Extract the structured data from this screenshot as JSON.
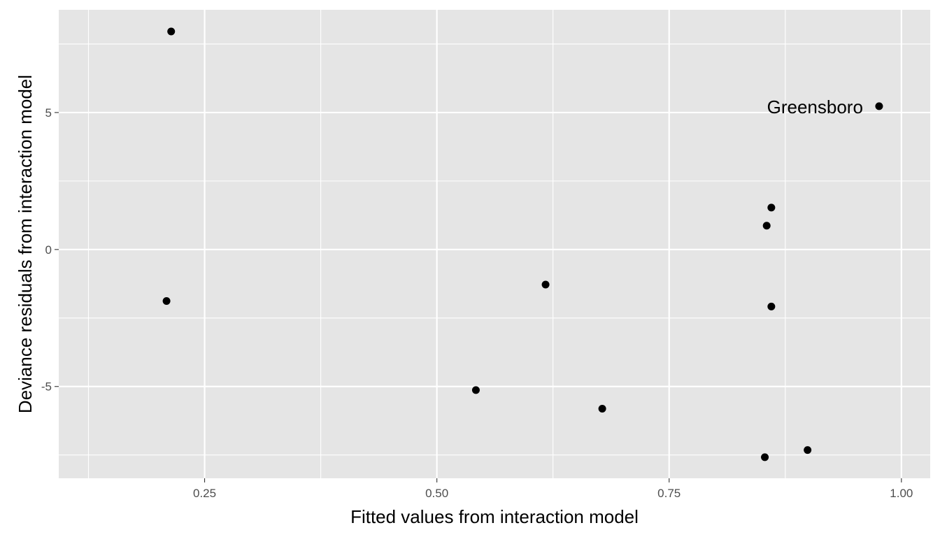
{
  "chart_data": {
    "type": "scatter",
    "title": "",
    "xlabel": "Fitted values from interaction model",
    "ylabel": "Deviance residuals from interaction model",
    "xlim": [
      0.093,
      1.031
    ],
    "ylim": [
      -8.35,
      8.75
    ],
    "x_ticks": [
      0.25,
      0.5,
      0.75,
      1.0
    ],
    "x_tick_labels": [
      "0.25",
      "0.50",
      "0.75",
      "1.00"
    ],
    "y_ticks": [
      -5,
      0,
      5
    ],
    "y_tick_labels": [
      "-5",
      "0",
      "5"
    ],
    "grid": true,
    "background": "#e5e5e5",
    "grid_color": "#ffffff",
    "point_color": "#000000",
    "points": [
      {
        "x": 0.214,
        "y": 7.96
      },
      {
        "x": 0.976,
        "y": 5.23
      },
      {
        "x": 0.86,
        "y": 1.53
      },
      {
        "x": 0.855,
        "y": 0.87
      },
      {
        "x": 0.209,
        "y": -1.88
      },
      {
        "x": 0.617,
        "y": -1.28
      },
      {
        "x": 0.86,
        "y": -2.08
      },
      {
        "x": 0.542,
        "y": -5.13
      },
      {
        "x": 0.678,
        "y": -5.81
      },
      {
        "x": 0.899,
        "y": -7.32
      },
      {
        "x": 0.853,
        "y": -7.58
      }
    ],
    "annotations": [
      {
        "text": "Greensboro",
        "x": 0.976,
        "y": 5.23
      }
    ]
  }
}
